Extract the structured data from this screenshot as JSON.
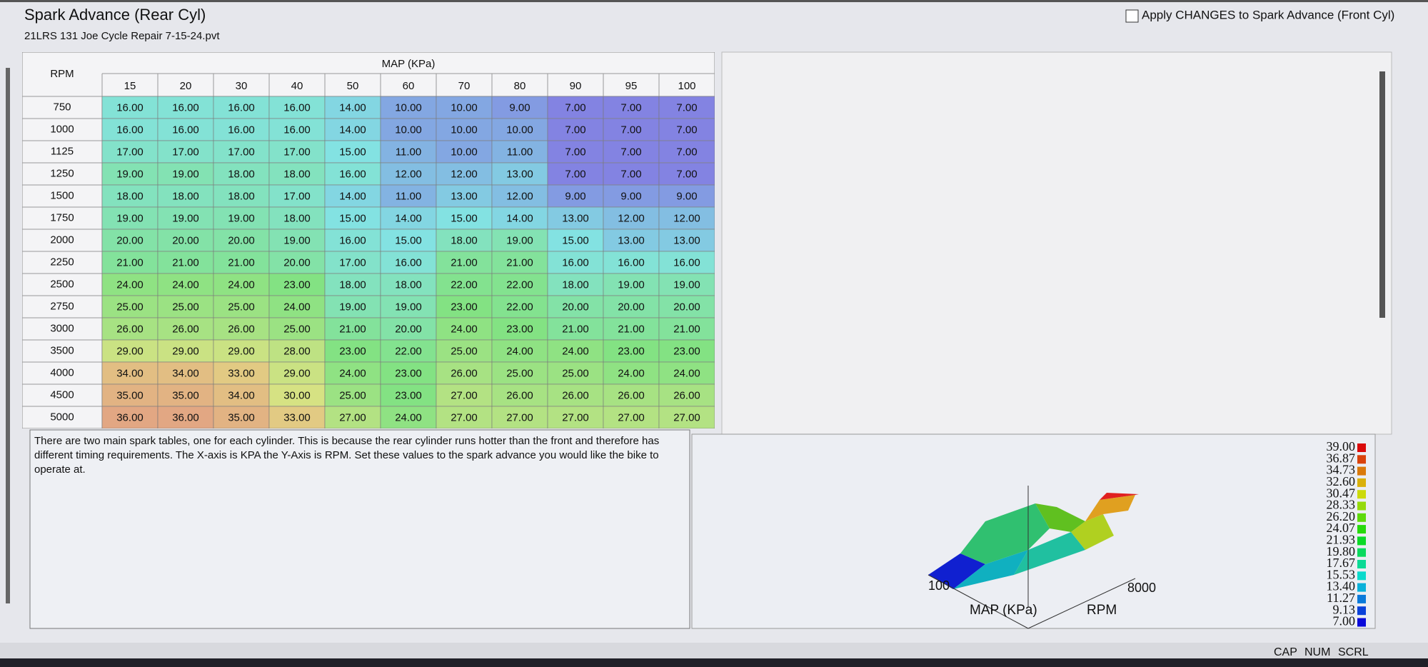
{
  "header": {
    "title": "Spark Advance (Rear Cyl)",
    "file": "21LRS 131 Joe Cycle Repair 7-15-24.pvt",
    "apply_label": "Apply CHANGES to Spark Advance (Front Cyl)"
  },
  "table": {
    "axis_label": "MAP (KPa)",
    "row_header": "RPM",
    "columns": [
      15,
      20,
      30,
      40,
      50,
      60,
      70,
      80,
      90,
      95,
      100
    ],
    "rows": [
      {
        "label": 750,
        "cells": [
          "16.00",
          "16.00",
          "16.00",
          "16.00",
          "14.00",
          "10.00",
          "10.00",
          "9.00",
          "7.00",
          "7.00",
          "7.00"
        ]
      },
      {
        "label": 1000,
        "cells": [
          "16.00",
          "16.00",
          "16.00",
          "16.00",
          "14.00",
          "10.00",
          "10.00",
          "10.00",
          "7.00",
          "7.00",
          "7.00"
        ]
      },
      {
        "label": 1125,
        "cells": [
          "17.00",
          "17.00",
          "17.00",
          "17.00",
          "15.00",
          "11.00",
          "10.00",
          "11.00",
          "7.00",
          "7.00",
          "7.00"
        ]
      },
      {
        "label": 1250,
        "cells": [
          "19.00",
          "19.00",
          "18.00",
          "18.00",
          "16.00",
          "12.00",
          "12.00",
          "13.00",
          "7.00",
          "7.00",
          "7.00"
        ]
      },
      {
        "label": 1500,
        "cells": [
          "18.00",
          "18.00",
          "18.00",
          "17.00",
          "14.00",
          "11.00",
          "13.00",
          "12.00",
          "9.00",
          "9.00",
          "9.00"
        ]
      },
      {
        "label": 1750,
        "cells": [
          "19.00",
          "19.00",
          "19.00",
          "18.00",
          "15.00",
          "14.00",
          "15.00",
          "14.00",
          "13.00",
          "12.00",
          "12.00"
        ]
      },
      {
        "label": 2000,
        "cells": [
          "20.00",
          "20.00",
          "20.00",
          "19.00",
          "16.00",
          "15.00",
          "18.00",
          "19.00",
          "15.00",
          "13.00",
          "13.00"
        ]
      },
      {
        "label": 2250,
        "cells": [
          "21.00",
          "21.00",
          "21.00",
          "20.00",
          "17.00",
          "16.00",
          "21.00",
          "21.00",
          "16.00",
          "16.00",
          "16.00"
        ]
      },
      {
        "label": 2500,
        "cells": [
          "24.00",
          "24.00",
          "24.00",
          "23.00",
          "18.00",
          "18.00",
          "22.00",
          "22.00",
          "18.00",
          "19.00",
          "19.00"
        ]
      },
      {
        "label": 2750,
        "cells": [
          "25.00",
          "25.00",
          "25.00",
          "24.00",
          "19.00",
          "19.00",
          "23.00",
          "22.00",
          "20.00",
          "20.00",
          "20.00"
        ]
      },
      {
        "label": 3000,
        "cells": [
          "26.00",
          "26.00",
          "26.00",
          "25.00",
          "21.00",
          "20.00",
          "24.00",
          "23.00",
          "21.00",
          "21.00",
          "21.00"
        ]
      },
      {
        "label": 3500,
        "cells": [
          "29.00",
          "29.00",
          "29.00",
          "28.00",
          "23.00",
          "22.00",
          "25.00",
          "24.00",
          "24.00",
          "23.00",
          "23.00"
        ]
      },
      {
        "label": 4000,
        "cells": [
          "34.00",
          "34.00",
          "33.00",
          "29.00",
          "24.00",
          "23.00",
          "26.00",
          "25.00",
          "25.00",
          "24.00",
          "24.00"
        ]
      },
      {
        "label": 4500,
        "cells": [
          "35.00",
          "35.00",
          "34.00",
          "30.00",
          "25.00",
          "23.00",
          "27.00",
          "26.00",
          "26.00",
          "26.00",
          "26.00"
        ]
      },
      {
        "label": 5000,
        "cells": [
          "36.00",
          "36.00",
          "35.00",
          "33.00",
          "27.00",
          "24.00",
          "27.00",
          "27.00",
          "27.00",
          "27.00",
          "27.00"
        ]
      }
    ]
  },
  "description": "There are two main spark tables, one for each cylinder.  This is because the rear cylinder runs hotter than the front and therefore has different timing requirements.   The X-axis is KPA the Y-Axis is RPM.  Set these values to the spark advance you would like the bike to operate at.",
  "surface_plot": {
    "x_label": "MAP (KPa)",
    "y_label": "RPM",
    "x_tick": "100",
    "y_tick": "8000"
  },
  "color_scale": [
    "39.00",
    "36.87",
    "34.73",
    "32.60",
    "30.47",
    "28.33",
    "26.20",
    "24.07",
    "21.93",
    "19.80",
    "17.67",
    "15.53",
    "13.40",
    "11.27",
    "9.13",
    "7.00"
  ],
  "status_bar": [
    "CAP",
    "NUM",
    "SCRL"
  ]
}
